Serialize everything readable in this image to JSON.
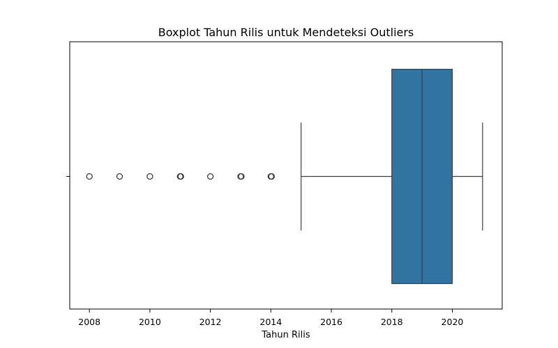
{
  "chart_data": {
    "type": "boxplot",
    "orientation": "horizontal",
    "title": "Boxplot Tahun Rilis untuk Mendeteksi Outliers",
    "xlabel": "Tahun Rilis",
    "ylabel": "",
    "xlim": [
      2007.35,
      2021.65
    ],
    "xticks": [
      2008,
      2010,
      2012,
      2014,
      2016,
      2018,
      2020
    ],
    "xtick_labels": [
      "2008",
      "2010",
      "2012",
      "2014",
      "2016",
      "2018",
      "2020"
    ],
    "grid": false,
    "colors": {
      "box": "#3274a1",
      "line": "#3d3d3d"
    },
    "box": {
      "whisker_low": 2015,
      "q1": 2018,
      "median": 2019,
      "q3": 2020,
      "whisker_high": 2021
    },
    "outliers": [
      2008,
      2009,
      2010,
      2011,
      2011,
      2012,
      2013,
      2013,
      2014,
      2014
    ]
  }
}
